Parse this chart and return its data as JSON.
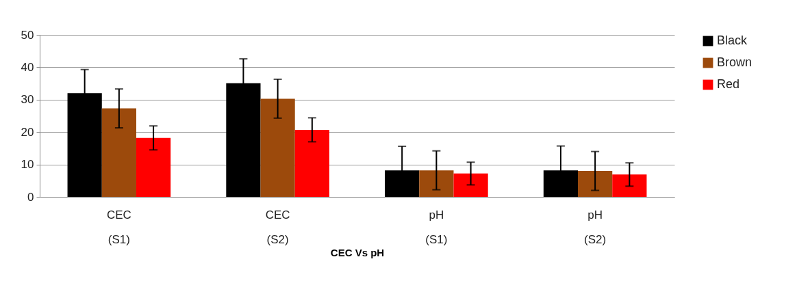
{
  "chart_data": {
    "type": "bar",
    "xlabel": "CEC Vs pH",
    "categories": [
      "CEC\n(S1)",
      "CEC\n(S2)",
      "pH\n(S1)",
      "pH\n(S2)"
    ],
    "series": [
      {
        "name": "Black",
        "color": "#000000",
        "values": [
          32,
          35.1,
          8.2,
          8.2
        ],
        "errors": [
          7.3,
          7.5,
          7.4,
          7.5
        ]
      },
      {
        "name": "Brown",
        "color": "#9c4a0c",
        "values": [
          27.3,
          30.3,
          8.2,
          8
        ],
        "errors": [
          6,
          6,
          6,
          6
        ]
      },
      {
        "name": "Red",
        "color": "#ff0000",
        "values": [
          18.2,
          20.7,
          7.2,
          6.9
        ],
        "errors": [
          3.7,
          3.7,
          3.5,
          3.6
        ]
      }
    ],
    "ylim": [
      0,
      50
    ],
    "yticks": [
      0,
      10,
      20,
      30,
      40,
      50
    ],
    "grid": "y",
    "legend": "right"
  }
}
